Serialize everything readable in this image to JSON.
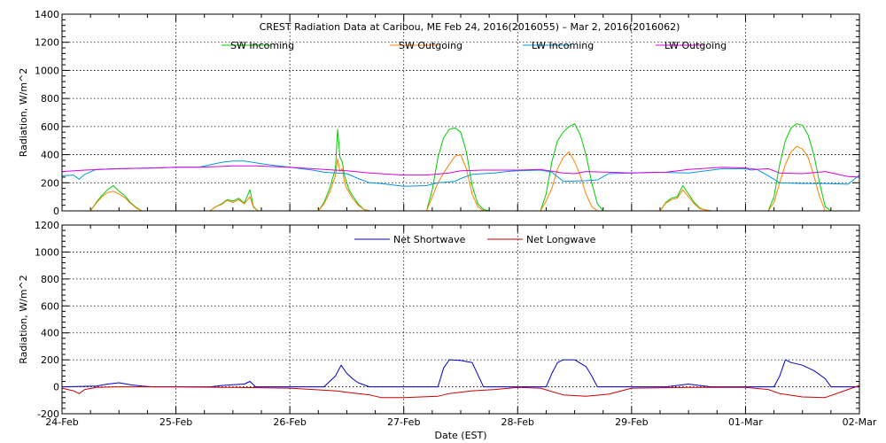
{
  "chart_data": [
    {
      "type": "line",
      "title": "CREST Radiation Data at Caribou, ME   Feb 24, 2016(2016055) – Mar  2, 2016(2016062)",
      "xlabel": "",
      "ylabel": "Radiation, W/m^2",
      "xlim": [
        0,
        7
      ],
      "ylim": [
        0,
        1400
      ],
      "yticks": [
        "0",
        "200",
        "400",
        "600",
        "800",
        "1000",
        "1200",
        "1400"
      ],
      "grid": true,
      "legend_position": "top",
      "series": [
        {
          "name": "SW Incoming",
          "color": "#00cc00",
          "x": [
            0,
            0.25,
            0.3,
            0.35,
            0.4,
            0.45,
            0.5,
            0.55,
            0.6,
            0.65,
            0.7,
            0.8,
            1.3,
            1.35,
            1.4,
            1.45,
            1.5,
            1.55,
            1.6,
            1.65,
            1.68,
            1.72,
            2.25,
            2.3,
            2.35,
            2.4,
            2.42,
            2.44,
            2.46,
            2.48,
            2.5,
            2.52,
            2.55,
            2.6,
            2.65,
            2.7,
            2.75,
            3.2,
            3.25,
            3.3,
            3.35,
            3.4,
            3.45,
            3.5,
            3.55,
            3.6,
            3.65,
            3.7,
            3.75,
            4.2,
            4.25,
            4.3,
            4.35,
            4.4,
            4.45,
            4.5,
            4.55,
            4.6,
            4.65,
            4.7,
            4.75,
            5.25,
            5.3,
            5.35,
            5.4,
            5.45,
            5.5,
            5.55,
            5.6,
            5.65,
            5.7,
            6.2,
            6.25,
            6.3,
            6.35,
            6.4,
            6.45,
            6.5,
            6.55,
            6.6,
            6.65,
            6.7,
            6.75,
            7
          ],
          "y": [
            0,
            0,
            60,
            110,
            150,
            180,
            140,
            110,
            60,
            25,
            0,
            0,
            0,
            30,
            50,
            80,
            70,
            90,
            55,
            150,
            30,
            0,
            0,
            60,
            160,
            300,
            580,
            380,
            350,
            250,
            200,
            150,
            110,
            50,
            10,
            0,
            0,
            0,
            150,
            380,
            520,
            580,
            590,
            560,
            420,
            180,
            50,
            10,
            0,
            0,
            120,
            350,
            500,
            560,
            600,
            620,
            540,
            400,
            200,
            50,
            0,
            0,
            60,
            90,
            100,
            180,
            120,
            60,
            20,
            5,
            0,
            0,
            100,
            330,
            500,
            590,
            620,
            610,
            540,
            400,
            200,
            30,
            0,
            0
          ]
        },
        {
          "name": "SW Outgoing",
          "color": "#ff8000",
          "x": [
            0,
            0.25,
            0.3,
            0.35,
            0.4,
            0.45,
            0.5,
            0.55,
            0.6,
            0.65,
            0.7,
            0.8,
            1.3,
            1.35,
            1.4,
            1.45,
            1.5,
            1.55,
            1.6,
            1.65,
            1.68,
            1.72,
            2.25,
            2.3,
            2.35,
            2.4,
            2.42,
            2.44,
            2.46,
            2.48,
            2.5,
            2.55,
            2.6,
            2.65,
            2.7,
            2.75,
            3.2,
            3.25,
            3.3,
            3.35,
            3.4,
            3.45,
            3.5,
            3.55,
            3.6,
            3.65,
            3.7,
            4.2,
            4.25,
            4.3,
            4.35,
            4.4,
            4.45,
            4.5,
            4.55,
            4.6,
            4.65,
            4.7,
            5.25,
            5.3,
            5.35,
            5.4,
            5.45,
            5.5,
            5.55,
            5.6,
            5.7,
            6.2,
            6.25,
            6.3,
            6.35,
            6.4,
            6.45,
            6.5,
            6.55,
            6.6,
            6.65,
            6.7,
            7
          ],
          "y": [
            0,
            0,
            55,
            100,
            130,
            140,
            120,
            95,
            55,
            20,
            0,
            0,
            0,
            30,
            45,
            75,
            60,
            80,
            50,
            100,
            25,
            0,
            0,
            50,
            130,
            250,
            370,
            280,
            300,
            200,
            160,
            90,
            40,
            10,
            0,
            0,
            0,
            100,
            200,
            270,
            330,
            390,
            400,
            300,
            120,
            30,
            0,
            0,
            70,
            160,
            300,
            380,
            420,
            350,
            250,
            120,
            30,
            0,
            0,
            55,
            80,
            90,
            150,
            100,
            50,
            15,
            0,
            0,
            60,
            200,
            330,
            420,
            460,
            440,
            380,
            250,
            100,
            0,
            0
          ]
        },
        {
          "name": "LW Incoming",
          "color": "#0099dd",
          "x": [
            0,
            0.1,
            0.15,
            0.2,
            0.3,
            0.5,
            0.8,
            1.0,
            1.2,
            1.4,
            1.5,
            1.6,
            1.8,
            1.9,
            2.0,
            2.2,
            2.3,
            2.5,
            2.6,
            2.7,
            2.8,
            3.0,
            3.2,
            3.3,
            3.45,
            3.5,
            3.6,
            3.8,
            3.9,
            4.0,
            4.2,
            4.3,
            4.4,
            4.6,
            4.7,
            4.8,
            5.0,
            5.2,
            5.5,
            5.8,
            6.0,
            6.05,
            6.1,
            6.2,
            6.3,
            6.5,
            6.7,
            6.9,
            7
          ],
          "y": [
            250,
            255,
            225,
            260,
            295,
            300,
            305,
            310,
            310,
            345,
            355,
            355,
            330,
            320,
            310,
            290,
            275,
            265,
            230,
            200,
            195,
            175,
            180,
            200,
            210,
            230,
            260,
            270,
            280,
            285,
            290,
            275,
            210,
            215,
            220,
            265,
            270,
            275,
            270,
            300,
            300,
            290,
            295,
            250,
            200,
            195,
            195,
            190,
            255
          ]
        },
        {
          "name": "LW Outgoing",
          "color": "#dd00dd",
          "x": [
            0,
            0.2,
            0.5,
            0.8,
            1.0,
            1.2,
            1.5,
            1.7,
            2.0,
            2.3,
            2.5,
            2.7,
            3.0,
            3.2,
            3.4,
            3.5,
            3.7,
            4.0,
            4.2,
            4.4,
            4.5,
            4.6,
            4.8,
            5.0,
            5.3,
            5.5,
            5.8,
            6.0,
            6.1,
            6.2,
            6.3,
            6.5,
            6.7,
            6.9,
            7
          ],
          "y": [
            280,
            290,
            300,
            305,
            310,
            310,
            320,
            320,
            310,
            295,
            285,
            270,
            255,
            255,
            270,
            285,
            290,
            290,
            295,
            270,
            265,
            280,
            275,
            270,
            275,
            295,
            310,
            305,
            295,
            300,
            270,
            265,
            280,
            245,
            240
          ]
        }
      ]
    },
    {
      "type": "line",
      "title": "",
      "xlabel": "Date (EST)",
      "ylabel": "Radiation, W/m^2",
      "xlim": [
        0,
        7
      ],
      "ylim": [
        -200,
        1200
      ],
      "yticks": [
        "-200",
        "0",
        "200",
        "400",
        "600",
        "800",
        "1000",
        "1200"
      ],
      "categories": [
        "24-Feb",
        "25-Feb",
        "26-Feb",
        "27-Feb",
        "28-Feb",
        "29-Feb",
        "01-Mar",
        "02-Mar"
      ],
      "grid": true,
      "legend_position": "top",
      "series": [
        {
          "name": "Net Shortwave",
          "color": "#0000cc",
          "x": [
            0,
            0.3,
            0.4,
            0.5,
            0.6,
            0.7,
            0.8,
            1.3,
            1.4,
            1.5,
            1.6,
            1.65,
            1.7,
            2.3,
            2.35,
            2.4,
            2.45,
            2.5,
            2.55,
            2.6,
            2.7,
            3.3,
            3.35,
            3.4,
            3.5,
            3.6,
            3.7,
            4.25,
            4.3,
            4.35,
            4.4,
            4.5,
            4.6,
            4.65,
            4.7,
            5.3,
            5.5,
            5.6,
            5.7,
            6.25,
            6.3,
            6.35,
            6.4,
            6.5,
            6.6,
            6.7,
            6.75,
            7
          ],
          "y": [
            0,
            5,
            20,
            30,
            15,
            5,
            0,
            0,
            10,
            15,
            20,
            40,
            0,
            0,
            40,
            80,
            160,
            100,
            60,
            30,
            0,
            0,
            140,
            200,
            195,
            180,
            0,
            0,
            100,
            180,
            200,
            200,
            150,
            80,
            0,
            0,
            20,
            10,
            0,
            0,
            80,
            200,
            180,
            160,
            120,
            60,
            0,
            0
          ]
        },
        {
          "name": "Net Longwave",
          "color": "#cc0000",
          "x": [
            0,
            0.1,
            0.15,
            0.2,
            0.3,
            0.5,
            1.0,
            1.5,
            2.0,
            2.4,
            2.5,
            2.7,
            2.8,
            3.0,
            3.3,
            3.4,
            3.6,
            3.8,
            4.0,
            4.2,
            4.4,
            4.6,
            4.8,
            5.0,
            5.5,
            6.0,
            6.2,
            6.3,
            6.5,
            6.7,
            6.9,
            7
          ],
          "y": [
            -10,
            -30,
            -50,
            -20,
            -5,
            0,
            0,
            -5,
            -10,
            -30,
            -40,
            -60,
            -80,
            -80,
            -70,
            -50,
            -30,
            -20,
            -5,
            -10,
            -60,
            -70,
            -55,
            -10,
            -5,
            -5,
            -20,
            -50,
            -75,
            -80,
            -20,
            10
          ]
        }
      ]
    }
  ]
}
